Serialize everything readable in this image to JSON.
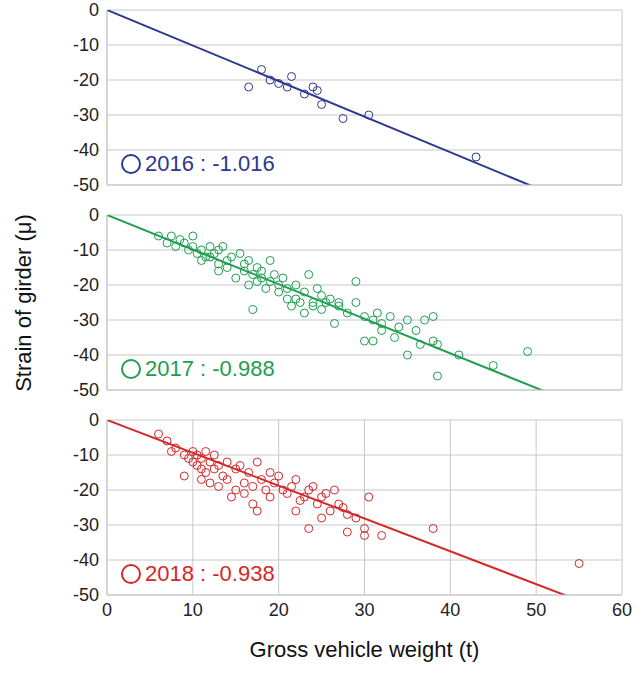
{
  "chart_data": [
    {
      "type": "scatter",
      "xlim": [
        0,
        60
      ],
      "xticks": [
        0,
        10,
        20,
        30,
        40,
        50,
        60
      ],
      "ylim": [
        -50,
        0
      ],
      "yticks": [
        0,
        -10,
        -20,
        -30,
        -40,
        -50
      ],
      "grid": true,
      "tick_labels": "y",
      "legend": "lower left",
      "x": [
        16.5,
        18,
        19,
        20,
        21,
        21.5,
        23,
        24,
        24.5,
        25,
        27.5,
        30.5,
        43
      ],
      "series": [
        {
          "name": "2016 : -1.016",
          "color": "#2b3990",
          "marker": "open_circle",
          "slope": -1.016,
          "values": [
            -22,
            -17,
            -20,
            -21,
            -22,
            -19,
            -24,
            -22,
            -23,
            -27,
            -31,
            -30,
            -42
          ]
        }
      ]
    },
    {
      "type": "scatter",
      "xlim": [
        0,
        60
      ],
      "xticks": [
        0,
        10,
        20,
        30,
        40,
        50,
        60
      ],
      "ylim": [
        -50,
        0
      ],
      "yticks": [
        0,
        -10,
        -20,
        -30,
        -40,
        -50
      ],
      "grid": true,
      "tick_labels": "y",
      "legend": "lower left",
      "ylabel": "Strain of girder (μ)",
      "x": [
        6,
        7,
        7.5,
        8,
        8.5,
        9,
        9.5,
        10,
        10,
        10.5,
        11,
        11,
        11.5,
        12,
        12,
        12.5,
        13,
        13,
        13,
        13.5,
        14,
        14,
        14.5,
        15,
        15.5,
        16,
        16,
        16.5,
        16.5,
        17,
        17,
        17.5,
        17.5,
        18,
        18,
        18.5,
        19,
        19,
        19.5,
        20,
        20,
        20.5,
        21,
        21,
        21.5,
        22,
        22,
        22.5,
        23,
        23,
        23.5,
        24,
        24,
        24.5,
        25,
        25,
        25.5,
        26,
        26.5,
        27,
        27,
        28,
        29,
        29,
        30,
        30,
        31,
        31,
        31.5,
        32,
        32,
        33,
        33.5,
        34,
        35,
        35,
        36,
        36.5,
        37,
        38,
        38,
        38.5,
        38.5,
        41,
        45,
        49
      ],
      "series": [
        {
          "name": "2017 : -0.988",
          "color": "#1e9e50",
          "marker": "open_circle",
          "slope": -0.988,
          "values": [
            -6,
            -8,
            -6,
            -9,
            -7,
            -8,
            -10,
            -6,
            -9,
            -11,
            -10,
            -13,
            -12,
            -9,
            -12,
            -11,
            -14,
            -10,
            -16,
            -9,
            -13,
            -15,
            -12,
            -18,
            -11,
            -16,
            -14,
            -13,
            -20,
            -17,
            -27,
            -15,
            -19,
            -16,
            -18,
            -21,
            -19,
            -13,
            -17,
            -20,
            -22,
            -18,
            -24,
            -21,
            -26,
            -24,
            -20,
            -25,
            -22,
            -28,
            -17,
            -26,
            -25,
            -21,
            -23,
            -27,
            -25,
            -24,
            -31,
            -26,
            -25,
            -28,
            -19,
            -25,
            -29,
            -36,
            -30,
            -36,
            -28,
            -33,
            -31,
            -29,
            -35,
            -32,
            -30,
            -40,
            -33,
            -37,
            -30,
            -36,
            -29,
            -46,
            -37,
            -40,
            -43,
            -39
          ]
        }
      ]
    },
    {
      "type": "scatter",
      "xlim": [
        0,
        60
      ],
      "xticks": [
        0,
        10,
        20,
        30,
        40,
        50,
        60
      ],
      "ylim": [
        -50,
        0
      ],
      "yticks": [
        0,
        -10,
        -20,
        -30,
        -40,
        -50
      ],
      "grid": true,
      "legend": "lower left",
      "xlabel": "Gross vehicle weight (t)",
      "x": [
        6,
        7,
        7.5,
        8,
        9,
        9,
        9.5,
        10,
        10,
        10.5,
        10.5,
        11,
        11,
        11,
        11.5,
        11.5,
        12,
        12,
        12.5,
        12.5,
        13,
        13,
        13.5,
        14,
        14,
        14.5,
        15,
        15,
        15.5,
        16,
        16,
        16.5,
        17,
        17,
        17.5,
        17.5,
        18,
        18.5,
        19,
        19,
        19.5,
        20,
        20.5,
        21,
        21.5,
        22,
        22,
        22.5,
        23,
        23.5,
        23.5,
        24,
        24.5,
        25,
        25,
        25.5,
        26,
        26.5,
        27,
        27.5,
        28,
        28,
        29,
        30,
        30,
        30.5,
        32,
        38,
        55
      ],
      "series": [
        {
          "name": "2018 : -0.938",
          "color": "#d62728",
          "marker": "open_circle",
          "slope": -0.938,
          "values": [
            -4,
            -6,
            -9,
            -8,
            -16,
            -10,
            -11,
            -12,
            -9,
            -13,
            -10,
            -14,
            -11,
            -17,
            -9,
            -15,
            -12,
            -18,
            -10,
            -14,
            -13,
            -19,
            -16,
            -12,
            -17,
            -22,
            -14,
            -20,
            -13,
            -18,
            -21,
            -15,
            -24,
            -19,
            -12,
            -26,
            -17,
            -20,
            -15,
            -22,
            -18,
            -16,
            -20,
            -21,
            -19,
            -26,
            -17,
            -23,
            -22,
            -31,
            -20,
            -19,
            -24,
            -22,
            -28,
            -21,
            -26,
            -20,
            -24,
            -25,
            -32,
            -27,
            -28,
            -33,
            -31,
            -22,
            -33,
            -31,
            -41
          ]
        }
      ]
    }
  ]
}
